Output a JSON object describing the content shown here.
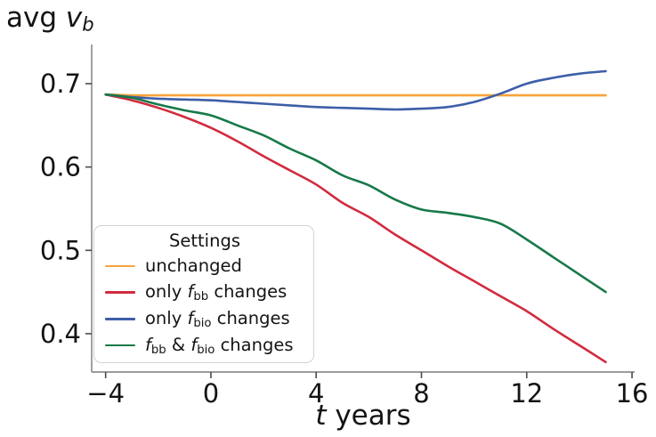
{
  "figure": {
    "title_text": "avg v_b",
    "title_parts": [
      {
        "t": "avg ",
        "s": "n"
      },
      {
        "t": "v",
        "s": "i"
      },
      {
        "t": "b",
        "s": "subi"
      }
    ],
    "xlabel_text": "t years",
    "xlabel_parts": [
      {
        "t": "t",
        "s": "i"
      },
      {
        "t": " years",
        "s": "n"
      }
    ]
  },
  "colors": {
    "orange": "#F7A43A",
    "red": "#D22B3F",
    "blue": "#3D5EA8",
    "green": "#17794A",
    "spine": "#7a7a7a",
    "tick": "#4a4a4a",
    "text": "#141414",
    "legend_border": "#d2d2d2"
  },
  "legend": {
    "title": "Settings",
    "entries": [
      {
        "id": "unchanged",
        "color": "#F7A43A",
        "label_text": "unchanged",
        "parts": [
          {
            "t": "unchanged",
            "s": "n"
          }
        ]
      },
      {
        "id": "only-fbb",
        "color": "#D22B3F",
        "label_text": "only f_bb changes",
        "parts": [
          {
            "t": "only ",
            "s": "n"
          },
          {
            "t": "f",
            "s": "i"
          },
          {
            "t": "bb",
            "s": "sub"
          },
          {
            "t": " changes",
            "s": "n"
          }
        ]
      },
      {
        "id": "only-fbio",
        "color": "#3D5EA8",
        "label_text": "only f_bio changes",
        "parts": [
          {
            "t": "only ",
            "s": "n"
          },
          {
            "t": "f",
            "s": "i"
          },
          {
            "t": "bio",
            "s": "sub"
          },
          {
            "t": " changes",
            "s": "n"
          }
        ]
      },
      {
        "id": "fbb-and-fbio",
        "color": "#17794A",
        "label_text": "f_bb & f_bio changes",
        "parts": [
          {
            "t": "f",
            "s": "i"
          },
          {
            "t": "bb",
            "s": "sub"
          },
          {
            "t": " & ",
            "s": "n"
          },
          {
            "t": "f",
            "s": "i"
          },
          {
            "t": "bio",
            "s": "sub"
          },
          {
            "t": " changes",
            "s": "n"
          }
        ]
      }
    ]
  },
  "chart_data": {
    "type": "line",
    "title": "avg v_b",
    "xlabel": "t years",
    "ylabel": "",
    "grid": false,
    "legend_title": "Settings",
    "legend_position": "lower-left",
    "xlim": [
      -4.53,
      16.1
    ],
    "ylim": [
      0.354,
      0.747
    ],
    "xticks": [
      -4,
      0,
      4,
      8,
      12,
      16
    ],
    "xtick_labels": [
      "−4",
      "0",
      "4",
      "8",
      "12",
      "16"
    ],
    "yticks": [
      0.4,
      0.5,
      0.6,
      0.7
    ],
    "ytick_labels": [
      "0.4",
      "0.5",
      "0.6",
      "0.7"
    ],
    "x": [
      -4,
      -3,
      -2,
      -1,
      0,
      1,
      2,
      3,
      4,
      5,
      6,
      7,
      8,
      9,
      10,
      11,
      12,
      13,
      14,
      15
    ],
    "series": [
      {
        "id": "unchanged",
        "name": "unchanged",
        "color": "#F7A43A",
        "values": [
          0.687,
          0.686,
          0.686,
          0.686,
          0.686,
          0.686,
          0.686,
          0.686,
          0.686,
          0.686,
          0.686,
          0.686,
          0.686,
          0.686,
          0.686,
          0.686,
          0.686,
          0.686,
          0.686,
          0.686
        ]
      },
      {
        "id": "only-fbb",
        "name": "only f_bb changes",
        "color": "#D22B3F",
        "values": [
          0.687,
          0.68,
          0.671,
          0.66,
          0.647,
          0.631,
          0.613,
          0.596,
          0.579,
          0.557,
          0.54,
          0.519,
          0.5,
          0.481,
          0.463,
          0.445,
          0.427,
          0.406,
          0.386,
          0.366
        ]
      },
      {
        "id": "only-fbio",
        "name": "only f_bio changes",
        "color": "#3D5EA8",
        "values": [
          0.687,
          0.684,
          0.682,
          0.681,
          0.68,
          0.678,
          0.676,
          0.674,
          0.672,
          0.671,
          0.67,
          0.669,
          0.67,
          0.672,
          0.678,
          0.688,
          0.7,
          0.707,
          0.712,
          0.715
        ]
      },
      {
        "id": "fbb-and-fbio",
        "name": "f_bb & f_bio changes",
        "color": "#17794A",
        "values": [
          0.687,
          0.683,
          0.675,
          0.668,
          0.662,
          0.65,
          0.638,
          0.622,
          0.608,
          0.59,
          0.578,
          0.561,
          0.549,
          0.545,
          0.54,
          0.532,
          0.513,
          0.492,
          0.471,
          0.45
        ]
      }
    ]
  }
}
